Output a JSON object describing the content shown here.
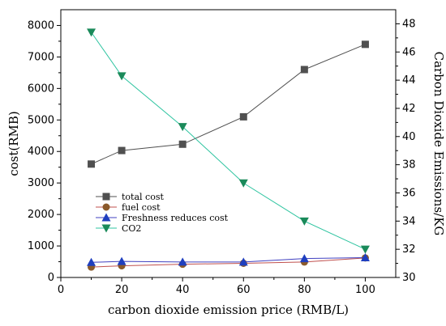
{
  "chart_data": {
    "type": "line",
    "xlabel": "carbon dioxide emission price  (RMB/L)",
    "ylabel_left": "cost(RMB)",
    "ylabel_right": "Carbon Dioxide Emissions/KG",
    "xlim": [
      0,
      110
    ],
    "ylim_left": [
      0,
      8500
    ],
    "ylim_right": [
      30,
      49
    ],
    "x_ticks": [
      0,
      20,
      40,
      60,
      80,
      100
    ],
    "y_left_ticks": [
      0,
      1000,
      2000,
      3000,
      4000,
      5000,
      6000,
      7000,
      8000
    ],
    "y_right_ticks": [
      30,
      32,
      34,
      36,
      38,
      40,
      42,
      44,
      46,
      48
    ],
    "x": [
      10,
      20,
      40,
      60,
      80,
      100
    ],
    "legend_position": "center-left",
    "grid": false,
    "series": [
      {
        "name": "total cost",
        "axis": "left",
        "marker": "square",
        "color": "#505050",
        "values": [
          3600,
          4030,
          4230,
          5100,
          6600,
          7400
        ]
      },
      {
        "name": "fuel cost",
        "axis": "left",
        "marker": "circle",
        "color": "#c0504d",
        "marker_color": "#8b5a2b",
        "values": [
          330,
          370,
          420,
          450,
          490,
          620
        ]
      },
      {
        "name": "Freshness reduces cost",
        "axis": "left",
        "marker": "triangle-up",
        "color": "#4040c0",
        "marker_color": "#1f3fbf",
        "values": [
          480,
          510,
          490,
          490,
          600,
          630
        ]
      },
      {
        "name": "CO2",
        "axis": "right",
        "marker": "triangle-down",
        "color": "#2ec4a0",
        "marker_color": "#1a8a5a",
        "values": [
          47.4,
          44.3,
          40.7,
          36.7,
          34.0,
          32.0
        ]
      }
    ]
  }
}
